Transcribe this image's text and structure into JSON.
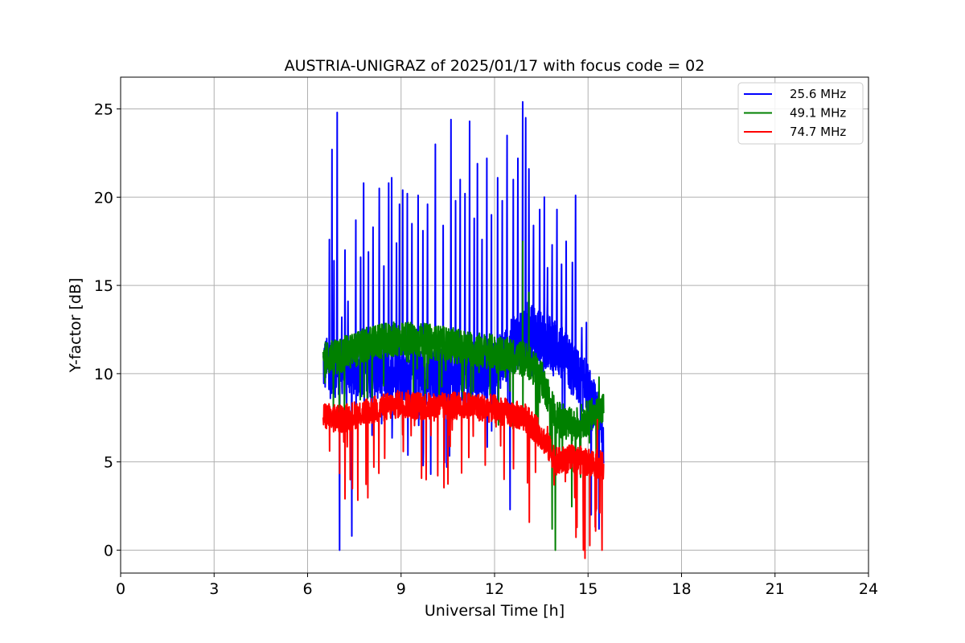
{
  "chart_data": {
    "type": "line",
    "title": "AUSTRIA-UNIGRAZ of 2025/01/17 with focus code = 02",
    "xlabel": "Universal Time [h]",
    "ylabel": "Y-factor [dB]",
    "xlim": [
      0,
      24
    ],
    "ylim": [
      -1.3,
      26.8
    ],
    "xticks": [
      0,
      3,
      6,
      9,
      12,
      15,
      18,
      21,
      24
    ],
    "yticks": [
      0,
      5,
      10,
      15,
      20,
      25
    ],
    "grid": true,
    "legend_position": "top-right",
    "time_range": [
      6.5,
      15.5
    ],
    "series": [
      {
        "name": "25.6 MHz",
        "color": "#0000ff",
        "baseline": [
          [
            6.5,
            10.5
          ],
          [
            8.0,
            10.2
          ],
          [
            10.0,
            9.8
          ],
          [
            12.0,
            10.3
          ],
          [
            13.0,
            12.5
          ],
          [
            14.0,
            11.5
          ],
          [
            15.0,
            9.0
          ],
          [
            15.5,
            6.5
          ]
        ],
        "peaks": [
          [
            6.6,
            11.8
          ],
          [
            6.7,
            17.6
          ],
          [
            6.78,
            22.7
          ],
          [
            6.85,
            16.4
          ],
          [
            6.95,
            24.8
          ],
          [
            7.03,
            0.0
          ],
          [
            7.1,
            13.2
          ],
          [
            7.2,
            17.0
          ],
          [
            7.3,
            14.1
          ],
          [
            7.42,
            0.8
          ],
          [
            7.55,
            18.7
          ],
          [
            7.7,
            16.6
          ],
          [
            7.8,
            20.8
          ],
          [
            7.95,
            16.9
          ],
          [
            8.1,
            18.3
          ],
          [
            8.3,
            20.5
          ],
          [
            8.45,
            16.1
          ],
          [
            8.6,
            20.8
          ],
          [
            8.7,
            21.1
          ],
          [
            8.85,
            17.4
          ],
          [
            8.95,
            19.6
          ],
          [
            9.05,
            20.4
          ],
          [
            9.2,
            20.2
          ],
          [
            9.35,
            18.5
          ],
          [
            9.55,
            20.1
          ],
          [
            9.7,
            18.1
          ],
          [
            9.85,
            19.6
          ],
          [
            9.95,
            4.3
          ],
          [
            10.1,
            23.0
          ],
          [
            10.35,
            18.4
          ],
          [
            10.6,
            24.4
          ],
          [
            10.75,
            19.8
          ],
          [
            10.9,
            21.0
          ],
          [
            11.05,
            20.2
          ],
          [
            11.2,
            24.3
          ],
          [
            11.35,
            18.8
          ],
          [
            11.45,
            21.9
          ],
          [
            11.6,
            17.6
          ],
          [
            11.75,
            22.2
          ],
          [
            11.9,
            19.0
          ],
          [
            12.1,
            21.1
          ],
          [
            12.25,
            19.8
          ],
          [
            12.4,
            23.5
          ],
          [
            12.5,
            2.3
          ],
          [
            12.6,
            21.0
          ],
          [
            12.75,
            22.2
          ],
          [
            12.9,
            25.4
          ],
          [
            13.0,
            24.5
          ],
          [
            13.1,
            21.6
          ],
          [
            13.25,
            18.4
          ],
          [
            13.45,
            19.3
          ],
          [
            13.6,
            20.0
          ],
          [
            13.7,
            16.0
          ],
          [
            13.85,
            17.3
          ],
          [
            14.0,
            19.3
          ],
          [
            14.15,
            16.2
          ],
          [
            14.3,
            17.5
          ],
          [
            14.5,
            16.3
          ],
          [
            14.6,
            20.1
          ],
          [
            14.8,
            12.6
          ],
          [
            14.95,
            12.9
          ],
          [
            15.1,
            2.0
          ],
          [
            15.2,
            9.5
          ],
          [
            15.35,
            1.2
          ],
          [
            15.45,
            8.4
          ]
        ],
        "noise": 1.6,
        "dips": 1.8
      },
      {
        "name": "49.1 MHz",
        "color": "#008000",
        "baseline": [
          [
            6.5,
            10.8
          ],
          [
            7.0,
            11.0
          ],
          [
            8.0,
            11.7
          ],
          [
            9.0,
            12.0
          ],
          [
            10.0,
            11.8
          ],
          [
            11.0,
            11.5
          ],
          [
            12.0,
            11.2
          ],
          [
            13.0,
            10.8
          ],
          [
            13.5,
            9.8
          ],
          [
            14.0,
            7.5
          ],
          [
            14.5,
            7.0
          ],
          [
            15.0,
            7.5
          ],
          [
            15.5,
            8.0
          ]
        ],
        "peaks": [
          [
            12.9,
            17.5
          ],
          [
            13.1,
            14.6
          ],
          [
            13.95,
            0.0
          ],
          [
            13.85,
            1.2
          ],
          [
            14.6,
            3.3
          ],
          [
            15.35,
            9.8
          ]
        ],
        "noise": 1.0,
        "dips": 1.6
      },
      {
        "name": "74.7 MHz",
        "color": "#ff0000",
        "baseline": [
          [
            6.5,
            7.6
          ],
          [
            7.0,
            7.4
          ],
          [
            8.0,
            7.9
          ],
          [
            9.0,
            8.3
          ],
          [
            10.0,
            8.1
          ],
          [
            11.0,
            8.2
          ],
          [
            12.0,
            8.0
          ],
          [
            13.0,
            7.5
          ],
          [
            13.5,
            6.5
          ],
          [
            14.0,
            5.0
          ],
          [
            14.5,
            5.2
          ],
          [
            15.0,
            5.0
          ],
          [
            15.5,
            4.8
          ]
        ],
        "peaks": [
          [
            14.85,
            0.0
          ],
          [
            15.45,
            0.0
          ],
          [
            15.3,
            7.4
          ],
          [
            13.7,
            7.0
          ]
        ],
        "noise": 0.8,
        "dips": 2.0
      }
    ]
  }
}
